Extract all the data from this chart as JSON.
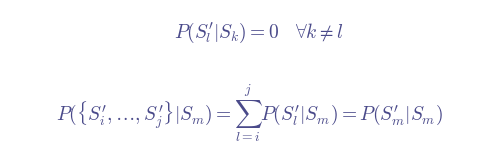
{
  "line1": "P(S_l^{\\prime}|S_k) = 0 \\quad \\forall k \\neq l",
  "line2": "P(\\{S_i^{\\prime}, \\ldots, S_j^{\\prime}\\}|S_m) = \\sum_{l=i}^{j} P(S_l^{\\prime}|S_m) = P(S_m^{\\prime}|S_m)",
  "background_color": "#ffffff",
  "text_color": "#4a4a8a",
  "fontsize1": 14,
  "fontsize2": 14,
  "fig_width": 4.87,
  "fig_height": 1.51
}
